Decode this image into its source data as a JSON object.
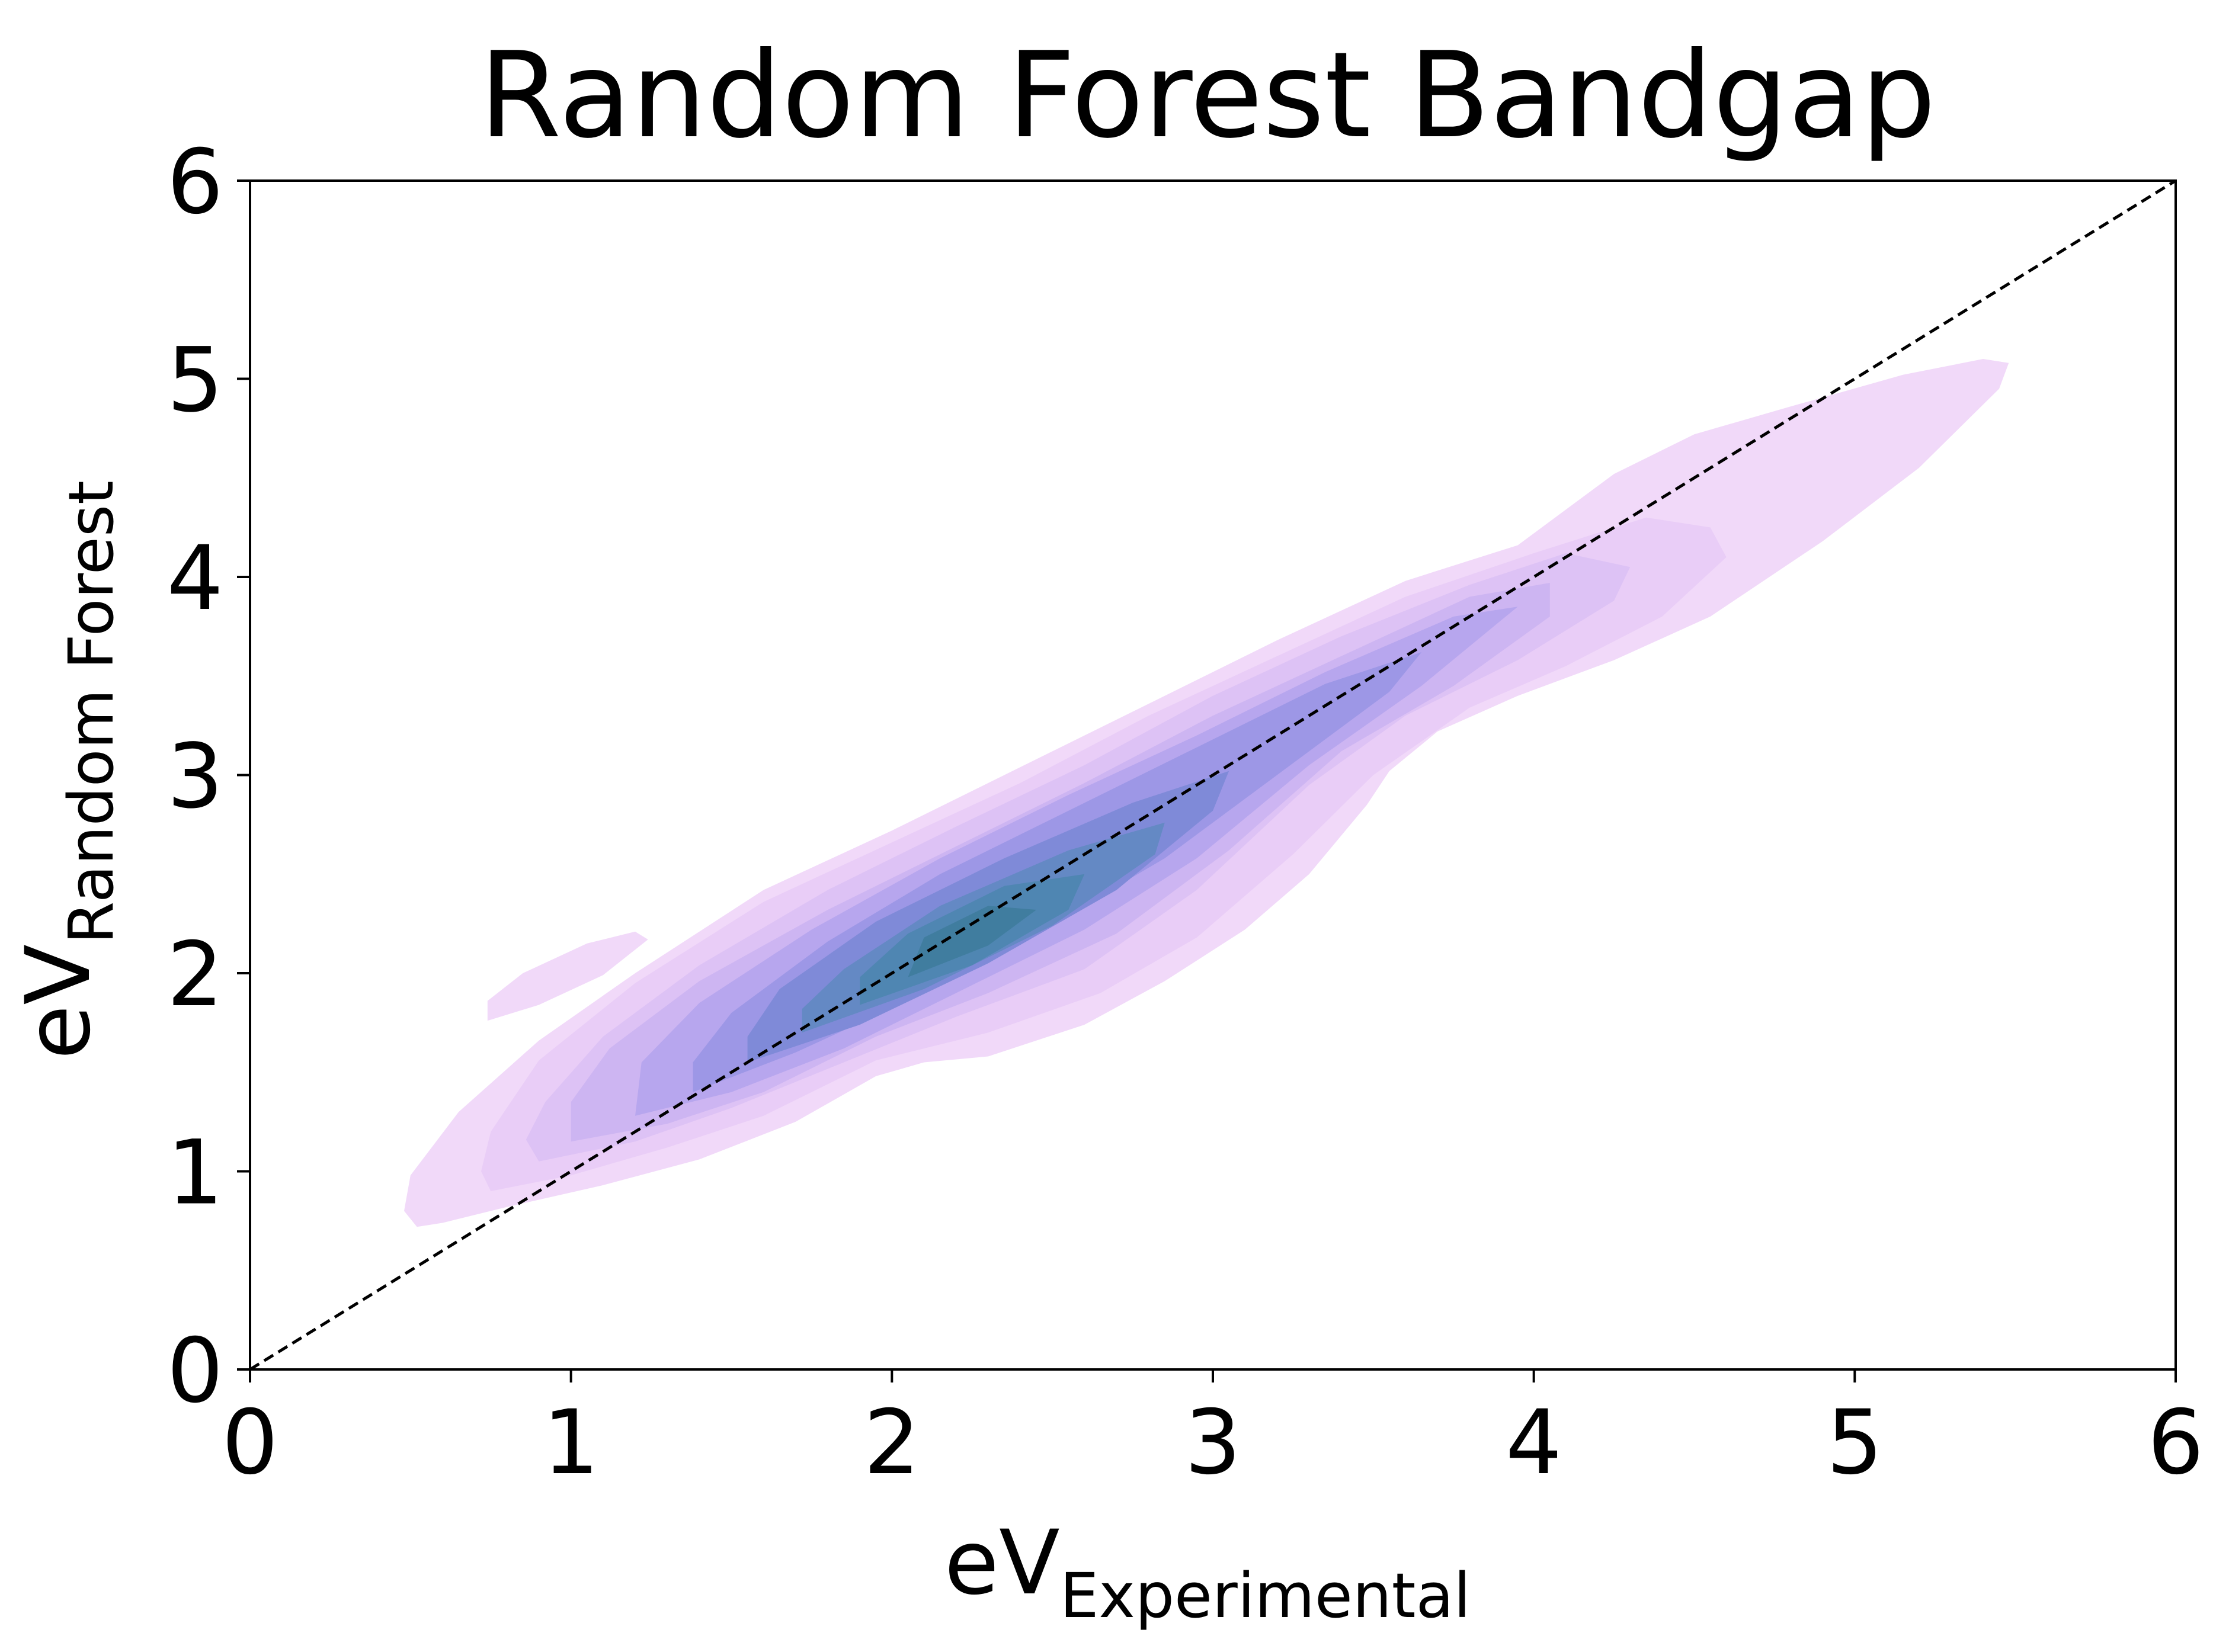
{
  "chart_data": {
    "type": "kde-contour",
    "title": "Random Forest Bandgap",
    "xlabel": {
      "main": "eV",
      "sub": "Experimental"
    },
    "ylabel": {
      "main": "eV",
      "sub": "Random Forest"
    },
    "xlim": [
      0,
      6
    ],
    "ylim": [
      0,
      6
    ],
    "xticks": [
      0,
      1,
      2,
      3,
      4,
      5,
      6
    ],
    "yticks": [
      0,
      1,
      2,
      3,
      4,
      5,
      6
    ],
    "grid": false,
    "reference_line": {
      "style": "dashed",
      "from": [
        0,
        0
      ],
      "to": [
        6,
        6
      ],
      "color": "#000000"
    },
    "colors": {
      "levels": [
        "#f1d9f9",
        "#e9cdf7",
        "#ddc2f5",
        "#cdb5f2",
        "#b7a6ee",
        "#9d97e6",
        "#7f8ad8",
        "#6489c4",
        "#4f86b2",
        "#407d9f"
      ]
    },
    "density_levels": [
      {
        "level": 1,
        "polygons": [
          [
            [
              0.52,
              0.72
            ],
            [
              0.6,
              0.74
            ],
            [
              0.8,
              0.82
            ],
            [
              1.1,
              0.93
            ],
            [
              1.4,
              1.06
            ],
            [
              1.7,
              1.25
            ],
            [
              1.95,
              1.48
            ],
            [
              2.1,
              1.55
            ],
            [
              2.3,
              1.58
            ],
            [
              2.6,
              1.74
            ],
            [
              2.85,
              1.96
            ],
            [
              3.1,
              2.22
            ],
            [
              3.3,
              2.5
            ],
            [
              3.48,
              2.85
            ],
            [
              3.55,
              3.02
            ],
            [
              3.7,
              3.22
            ],
            [
              3.95,
              3.4
            ],
            [
              4.25,
              3.58
            ],
            [
              4.55,
              3.8
            ],
            [
              4.9,
              4.18
            ],
            [
              5.2,
              4.55
            ],
            [
              5.45,
              4.95
            ],
            [
              5.48,
              5.08
            ],
            [
              5.4,
              5.1
            ],
            [
              5.15,
              5.02
            ],
            [
              4.8,
              4.86
            ],
            [
              4.5,
              4.72
            ],
            [
              4.25,
              4.52
            ],
            [
              3.95,
              4.16
            ],
            [
              3.6,
              3.98
            ],
            [
              3.2,
              3.68
            ],
            [
              2.8,
              3.36
            ],
            [
              2.4,
              3.04
            ],
            [
              2.0,
              2.72
            ],
            [
              1.6,
              2.42
            ],
            [
              1.2,
              2.0
            ],
            [
              0.9,
              1.66
            ],
            [
              0.65,
              1.3
            ],
            [
              0.5,
              0.98
            ],
            [
              0.48,
              0.8
            ]
          ],
          [
            [
              0.74,
              1.76
            ],
            [
              0.9,
              1.84
            ],
            [
              1.1,
              1.99
            ],
            [
              1.24,
              2.17
            ],
            [
              1.2,
              2.21
            ],
            [
              1.05,
              2.15
            ],
            [
              0.85,
              2.0
            ],
            [
              0.74,
              1.86
            ]
          ]
        ]
      },
      {
        "level": 2,
        "polygons": [
          [
            [
              0.75,
              0.9
            ],
            [
              1.0,
              0.98
            ],
            [
              1.3,
              1.12
            ],
            [
              1.6,
              1.28
            ],
            [
              1.95,
              1.56
            ],
            [
              2.3,
              1.7
            ],
            [
              2.65,
              1.9
            ],
            [
              2.95,
              2.18
            ],
            [
              3.25,
              2.6
            ],
            [
              3.5,
              3.0
            ],
            [
              3.8,
              3.34
            ],
            [
              4.1,
              3.55
            ],
            [
              4.4,
              3.8
            ],
            [
              4.6,
              4.1
            ],
            [
              4.55,
              4.25
            ],
            [
              4.35,
              4.3
            ],
            [
              4.0,
              4.12
            ],
            [
              3.6,
              3.9
            ],
            [
              3.2,
              3.6
            ],
            [
              2.8,
              3.3
            ],
            [
              2.4,
              2.96
            ],
            [
              2.0,
              2.66
            ],
            [
              1.6,
              2.36
            ],
            [
              1.2,
              1.95
            ],
            [
              0.9,
              1.56
            ],
            [
              0.75,
              1.2
            ],
            [
              0.72,
              1.0
            ]
          ]
        ]
      },
      {
        "level": 3,
        "polygons": [
          [
            [
              0.9,
              1.05
            ],
            [
              1.2,
              1.15
            ],
            [
              1.5,
              1.32
            ],
            [
              1.85,
              1.55
            ],
            [
              2.2,
              1.78
            ],
            [
              2.6,
              2.02
            ],
            [
              2.95,
              2.42
            ],
            [
              3.3,
              2.95
            ],
            [
              3.6,
              3.3
            ],
            [
              3.95,
              3.58
            ],
            [
              4.25,
              3.88
            ],
            [
              4.3,
              4.05
            ],
            [
              4.1,
              4.12
            ],
            [
              3.8,
              3.96
            ],
            [
              3.4,
              3.7
            ],
            [
              3.0,
              3.4
            ],
            [
              2.6,
              3.05
            ],
            [
              2.2,
              2.74
            ],
            [
              1.8,
              2.42
            ],
            [
              1.4,
              2.04
            ],
            [
              1.1,
              1.68
            ],
            [
              0.92,
              1.35
            ],
            [
              0.86,
              1.16
            ]
          ]
        ]
      },
      {
        "level": 4,
        "polygons": [
          [
            [
              1.0,
              1.15
            ],
            [
              1.3,
              1.24
            ],
            [
              1.6,
              1.4
            ],
            [
              1.95,
              1.68
            ],
            [
              2.3,
              1.9
            ],
            [
              2.7,
              2.2
            ],
            [
              3.05,
              2.62
            ],
            [
              3.4,
              3.12
            ],
            [
              3.75,
              3.45
            ],
            [
              4.05,
              3.8
            ],
            [
              4.05,
              3.97
            ],
            [
              3.8,
              3.9
            ],
            [
              3.4,
              3.6
            ],
            [
              3.0,
              3.3
            ],
            [
              2.6,
              2.96
            ],
            [
              2.2,
              2.64
            ],
            [
              1.8,
              2.32
            ],
            [
              1.4,
              1.96
            ],
            [
              1.12,
              1.62
            ],
            [
              1.0,
              1.35
            ]
          ]
        ]
      },
      {
        "level": 5,
        "polygons": [
          [
            [
              1.2,
              1.28
            ],
            [
              1.5,
              1.4
            ],
            [
              1.85,
              1.62
            ],
            [
              2.2,
              1.9
            ],
            [
              2.6,
              2.22
            ],
            [
              2.95,
              2.58
            ],
            [
              3.3,
              3.05
            ],
            [
              3.65,
              3.45
            ],
            [
              3.95,
              3.85
            ],
            [
              3.75,
              3.8
            ],
            [
              3.35,
              3.52
            ],
            [
              2.95,
              3.2
            ],
            [
              2.55,
              2.9
            ],
            [
              2.15,
              2.58
            ],
            [
              1.75,
              2.22
            ],
            [
              1.4,
              1.85
            ],
            [
              1.22,
              1.55
            ]
          ]
        ]
      },
      {
        "level": 6,
        "polygons": [
          [
            [
              1.38,
              1.4
            ],
            [
              1.7,
              1.6
            ],
            [
              2.05,
              1.86
            ],
            [
              2.45,
              2.2
            ],
            [
              2.85,
              2.58
            ],
            [
              3.2,
              3.0
            ],
            [
              3.55,
              3.42
            ],
            [
              3.65,
              3.62
            ],
            [
              3.35,
              3.46
            ],
            [
              2.95,
              3.14
            ],
            [
              2.55,
              2.82
            ],
            [
              2.15,
              2.5
            ],
            [
              1.8,
              2.16
            ],
            [
              1.5,
              1.8
            ],
            [
              1.38,
              1.55
            ]
          ]
        ]
      },
      {
        "level": 7,
        "polygons": [
          [
            [
              1.55,
              1.55
            ],
            [
              1.9,
              1.74
            ],
            [
              2.3,
              2.05
            ],
            [
              2.7,
              2.42
            ],
            [
              3.0,
              2.82
            ],
            [
              3.05,
              3.02
            ],
            [
              2.75,
              2.86
            ],
            [
              2.35,
              2.58
            ],
            [
              1.95,
              2.26
            ],
            [
              1.65,
              1.92
            ],
            [
              1.55,
              1.68
            ]
          ]
        ]
      },
      {
        "level": 8,
        "polygons": [
          [
            [
              1.72,
              1.7
            ],
            [
              2.1,
              1.92
            ],
            [
              2.5,
              2.24
            ],
            [
              2.82,
              2.6
            ],
            [
              2.85,
              2.76
            ],
            [
              2.55,
              2.62
            ],
            [
              2.15,
              2.34
            ],
            [
              1.85,
              2.02
            ],
            [
              1.72,
              1.82
            ]
          ]
        ]
      },
      {
        "level": 9,
        "polygons": [
          [
            [
              1.9,
              1.84
            ],
            [
              2.25,
              2.04
            ],
            [
              2.55,
              2.32
            ],
            [
              2.6,
              2.5
            ],
            [
              2.35,
              2.44
            ],
            [
              2.05,
              2.2
            ],
            [
              1.9,
              1.98
            ]
          ]
        ]
      },
      {
        "level": 10,
        "polygons": [
          [
            [
              2.05,
              1.98
            ],
            [
              2.3,
              2.14
            ],
            [
              2.45,
              2.32
            ],
            [
              2.3,
              2.34
            ],
            [
              2.1,
              2.18
            ]
          ]
        ]
      }
    ]
  }
}
